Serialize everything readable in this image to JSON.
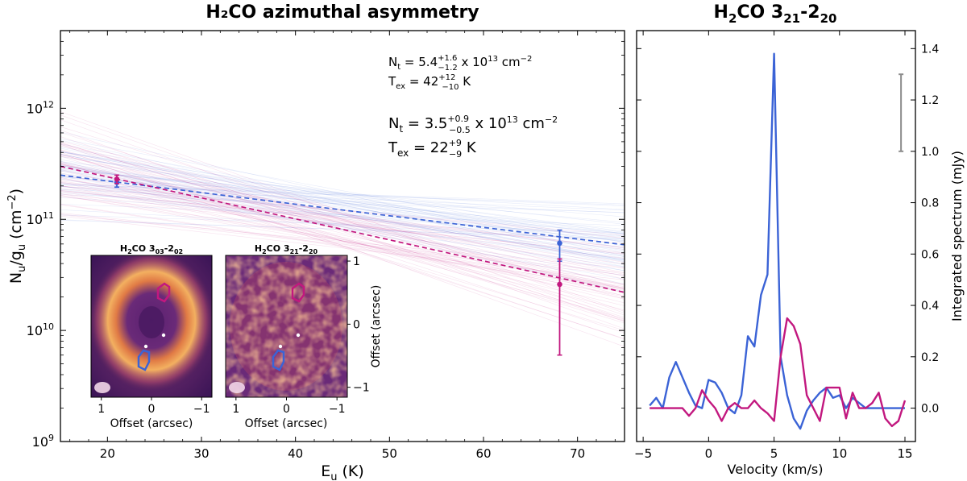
{
  "colors": {
    "blue": "#3b63d6",
    "magenta": "#c2187f",
    "gray": "#8c8c8c",
    "axis": "#000000"
  },
  "chart_data": [
    {
      "type": "scatter",
      "title": "H₂CO azimuthal asymmetry",
      "xlabel": "E",
      "xlabel_sub": "u",
      "xlabel_unit": " (K)",
      "ylabel": "N",
      "ylabel_sub1": "u",
      "ylabel_mid": "/g",
      "ylabel_sub2": "u",
      "ylabel_unit": " (cm",
      "ylabel_sup": "−2",
      "ylabel_close": ")",
      "scale_y": "log",
      "xlim": [
        15,
        75
      ],
      "ylim": [
        1000000000.0,
        5000000000000.0
      ],
      "xticks": [
        20,
        30,
        40,
        50,
        60,
        70
      ],
      "yticks": [
        {
          "value": 1000000000.0,
          "base": "10",
          "exp": "9"
        },
        {
          "value": 10000000000.0,
          "base": "10",
          "exp": "10"
        },
        {
          "value": 100000000000.0,
          "base": "10",
          "exp": "11"
        },
        {
          "value": 1000000000000.0,
          "base": "10",
          "exp": "12"
        }
      ],
      "series": [
        {
          "name": "blue region",
          "color": "blue",
          "points": [
            {
              "x": 21.0,
              "y": 215000000000.0,
              "ylow": 195000000000.0,
              "yhigh": 230000000000.0
            },
            {
              "x": 68.1,
              "y": 61000000000.0,
              "ylow": 42000000000.0,
              "yhigh": 80000000000.0
            }
          ],
          "fit_line": [
            {
              "x": 15,
              "y": 250000000000.0
            },
            {
              "x": 75,
              "y": 59000000000.0
            }
          ],
          "annotation": {
            "nt_label": "N",
            "nt_sub": "t",
            "nt_eq": " = 5.4",
            "nt_up": "+1.6",
            "nt_dn": "−1.2",
            "nt_tail": " x 10",
            "nt_exp": "13",
            "nt_unit": " cm",
            "nt_unit_exp": "−2",
            "tex_label": "T",
            "tex_sub": "ex",
            "tex_eq": " = 42",
            "tex_up": "+12",
            "tex_dn": "−10",
            "tex_unit": " K"
          }
        },
        {
          "name": "magenta region",
          "color": "magenta",
          "points": [
            {
              "x": 21.0,
              "y": 230000000000.0,
              "ylow": 210000000000.0,
              "yhigh": 250000000000.0
            },
            {
              "x": 68.1,
              "y": 26000000000.0,
              "ylow": 6000000000.0,
              "yhigh": 44000000000.0
            }
          ],
          "fit_line": [
            {
              "x": 15,
              "y": 300000000000.0
            },
            {
              "x": 75,
              "y": 22000000000.0
            }
          ],
          "annotation": {
            "nt_label": "N",
            "nt_sub": "t",
            "nt_eq": " = 3.5",
            "nt_up": "+0.9",
            "nt_dn": "−0.5",
            "nt_tail": " x 10",
            "nt_exp": "13",
            "nt_unit": " cm",
            "nt_unit_exp": "−2",
            "tex_label": "T",
            "tex_sub": "ex",
            "tex_eq": " = 22",
            "tex_up": "+9",
            "tex_dn": "−9",
            "tex_unit": " K"
          }
        }
      ],
      "insets": [
        {
          "title_main": "H",
          "title_sub1": "2",
          "title_mid": "CO 3",
          "title_sub2": "03",
          "title_dash": "-2",
          "title_sub3": "02",
          "xlabel": "Offset (arcsec)",
          "xticks": [
            "1",
            "0",
            "−1"
          ]
        },
        {
          "title_main": "H",
          "title_sub1": "2",
          "title_mid": "CO 3",
          "title_sub2": "21",
          "title_dash": "-2",
          "title_sub3": "20",
          "xlabel": "Offset (arcsec)",
          "xticks": [
            "1",
            "0",
            "−1"
          ],
          "ylabel": "Offset (arcsec)",
          "yticks": [
            "1",
            "0",
            "−1"
          ]
        }
      ]
    },
    {
      "type": "line",
      "title_main": "H",
      "title_sub1": "2",
      "title_mid": "CO 3",
      "title_sub2": "21",
      "title_dash": "-2",
      "title_sub3": "20",
      "xlabel": "Velocity (km/s)",
      "ylabel": "Integrated spectrum (mJy)",
      "xlim": [
        -5.5,
        15.8
      ],
      "ylim": [
        -0.13,
        1.47
      ],
      "xticks": [
        -5,
        0,
        5,
        10,
        15
      ],
      "xtick_labels": [
        "−5",
        "0",
        "5",
        "10",
        "15"
      ],
      "yticks": [
        0.0,
        0.2,
        0.4,
        0.6,
        0.8,
        1.0,
        1.2,
        1.4
      ],
      "ytick_labels": [
        "0.0",
        "0.2",
        "0.4",
        "0.6",
        "0.8",
        "1.0",
        "1.2",
        "1.4"
      ],
      "error_bar": {
        "x": 14.7,
        "ylow": 1.0,
        "yhigh": 1.3
      },
      "series": [
        {
          "name": "blue region",
          "color": "blue",
          "x": [
            -4.5,
            -4.0,
            -3.5,
            -3.0,
            -2.5,
            -2.0,
            -1.5,
            -1.0,
            -0.5,
            0.0,
            0.5,
            1.0,
            1.5,
            2.0,
            2.5,
            3.0,
            3.5,
            4.0,
            4.5,
            5.0,
            5.5,
            6.0,
            6.5,
            7.0,
            7.5,
            8.0,
            8.5,
            9.0,
            9.5,
            10.0,
            10.5,
            11.0,
            11.5,
            12.0,
            12.5,
            13.0,
            13.5,
            14.0,
            14.5,
            15.0
          ],
          "values": [
            0.01,
            0.04,
            0.0,
            0.12,
            0.18,
            0.12,
            0.06,
            0.01,
            0.0,
            0.11,
            0.1,
            0.06,
            0.0,
            -0.02,
            0.05,
            0.28,
            0.24,
            0.44,
            0.52,
            1.38,
            0.2,
            0.05,
            -0.04,
            -0.08,
            -0.01,
            0.03,
            0.06,
            0.08,
            0.04,
            0.05,
            0.0,
            0.04,
            0.02,
            0.0,
            0.0,
            0.0,
            0.0,
            0.0,
            0.0,
            0.0
          ]
        },
        {
          "name": "magenta region",
          "color": "magenta",
          "x": [
            -4.5,
            -4.0,
            -3.5,
            -3.0,
            -2.5,
            -2.0,
            -1.5,
            -1.0,
            -0.5,
            0.0,
            0.5,
            1.0,
            1.5,
            2.0,
            2.5,
            3.0,
            3.5,
            4.0,
            4.5,
            5.0,
            5.5,
            6.0,
            6.5,
            7.0,
            7.5,
            8.0,
            8.5,
            9.0,
            9.5,
            10.0,
            10.5,
            11.0,
            11.5,
            12.0,
            12.5,
            13.0,
            13.5,
            14.0,
            14.5,
            15.0
          ],
          "values": [
            0.0,
            0.0,
            0.0,
            0.0,
            0.0,
            0.0,
            -0.03,
            0.0,
            0.07,
            0.03,
            0.0,
            -0.05,
            0.0,
            0.02,
            0.0,
            0.0,
            0.03,
            0.0,
            -0.02,
            -0.05,
            0.2,
            0.35,
            0.32,
            0.25,
            0.05,
            0.0,
            -0.05,
            0.08,
            0.08,
            0.08,
            -0.04,
            0.06,
            0.0,
            0.0,
            0.02,
            0.06,
            -0.04,
            -0.07,
            -0.05,
            0.03
          ]
        }
      ]
    }
  ]
}
